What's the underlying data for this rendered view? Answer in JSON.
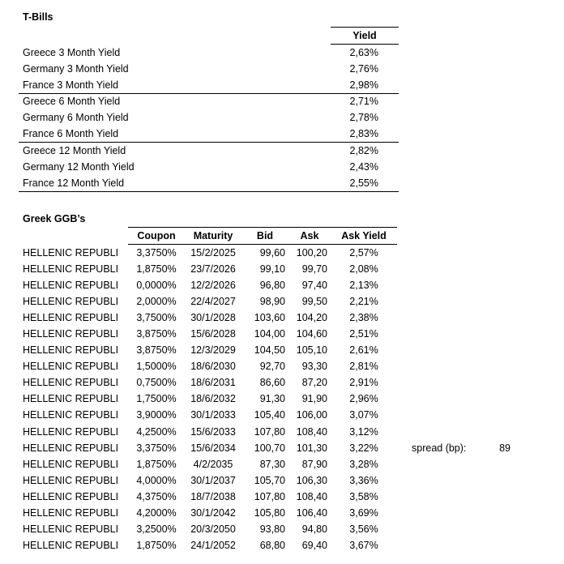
{
  "tbills": {
    "title": "T-Bills",
    "yield_header": "Yield",
    "rows": [
      {
        "label": "Greece 3 Month Yield",
        "value": "2,63%"
      },
      {
        "label": "Germany 3 Month Yield",
        "value": "2,76%"
      },
      {
        "label": "France 3 Month Yield",
        "value": "2,98%"
      },
      {
        "label": "Greece 6 Month Yield",
        "value": "2,71%"
      },
      {
        "label": "Germany 6 Month Yield",
        "value": "2,78%"
      },
      {
        "label": "France 6 Month Yield",
        "value": "2,83%"
      },
      {
        "label": "Greece 12 Month Yield",
        "value": "2,82%"
      },
      {
        "label": "Germany 12 Month Yield",
        "value": "2,43%"
      },
      {
        "label": "France 12 Month Yield",
        "value": "2,55%"
      }
    ]
  },
  "ggb": {
    "title": "Greek GGB’s",
    "columns": {
      "coupon": "Coupon",
      "maturity": "Maturity",
      "bid": "Bid",
      "ask": "Ask",
      "ask_yield": "Ask Yield"
    },
    "rows": [
      {
        "name": "HELLENIC REPUBLI",
        "coupon": "3,3750%",
        "maturity": "15/2/2025",
        "bid": "99,60",
        "ask": "100,20",
        "ask_yield": "2,57%"
      },
      {
        "name": "HELLENIC REPUBLI",
        "coupon": "1,8750%",
        "maturity": "23/7/2026",
        "bid": "99,10",
        "ask": "99,70",
        "ask_yield": "2,08%"
      },
      {
        "name": "HELLENIC REPUBLI",
        "coupon": "0,0000%",
        "maturity": "12/2/2026",
        "bid": "96,80",
        "ask": "97,40",
        "ask_yield": "2,13%"
      },
      {
        "name": "HELLENIC REPUBLI",
        "coupon": "2,0000%",
        "maturity": "22/4/2027",
        "bid": "98,90",
        "ask": "99,50",
        "ask_yield": "2,21%"
      },
      {
        "name": "HELLENIC REPUBLI",
        "coupon": "3,7500%",
        "maturity": "30/1/2028",
        "bid": "103,60",
        "ask": "104,20",
        "ask_yield": "2,38%"
      },
      {
        "name": "HELLENIC REPUBLI",
        "coupon": "3,8750%",
        "maturity": "15/6/2028",
        "bid": "104,00",
        "ask": "104,60",
        "ask_yield": "2,51%"
      },
      {
        "name": "HELLENIC REPUBLI",
        "coupon": "3,8750%",
        "maturity": "12/3/2029",
        "bid": "104,50",
        "ask": "105,10",
        "ask_yield": "2,61%"
      },
      {
        "name": "HELLENIC REPUBLI",
        "coupon": "1,5000%",
        "maturity": "18/6/2030",
        "bid": "92,70",
        "ask": "93,30",
        "ask_yield": "2,81%"
      },
      {
        "name": "HELLENIC REPUBLI",
        "coupon": "0,7500%",
        "maturity": "18/6/2031",
        "bid": "86,60",
        "ask": "87,20",
        "ask_yield": "2,91%"
      },
      {
        "name": "HELLENIC REPUBLI",
        "coupon": "1,7500%",
        "maturity": "18/6/2032",
        "bid": "91,30",
        "ask": "91,90",
        "ask_yield": "2,96%"
      },
      {
        "name": "HELLENIC REPUBLI",
        "coupon": "3,9000%",
        "maturity": "30/1/2033",
        "bid": "105,40",
        "ask": "106,00",
        "ask_yield": "3,07%"
      },
      {
        "name": "HELLENIC REPUBLI",
        "coupon": "4,2500%",
        "maturity": "15/6/2033",
        "bid": "107,80",
        "ask": "108,40",
        "ask_yield": "3,12%"
      },
      {
        "name": "HELLENIC REPUBLI",
        "coupon": "3,3750%",
        "maturity": "15/6/2034",
        "bid": "100,70",
        "ask": "101,30",
        "ask_yield": "3,22%"
      },
      {
        "name": "HELLENIC REPUBLI",
        "coupon": "1,8750%",
        "maturity": "4/2/2035",
        "bid": "87,30",
        "ask": "87,90",
        "ask_yield": "3,28%"
      },
      {
        "name": "HELLENIC REPUBLI",
        "coupon": "4,0000%",
        "maturity": "30/1/2037",
        "bid": "105,70",
        "ask": "106,30",
        "ask_yield": "3,36%"
      },
      {
        "name": "HELLENIC REPUBLI",
        "coupon": "4,3750%",
        "maturity": "18/7/2038",
        "bid": "107,80",
        "ask": "108,40",
        "ask_yield": "3,58%"
      },
      {
        "name": "HELLENIC REPUBLI",
        "coupon": "4,2000%",
        "maturity": "30/1/2042",
        "bid": "105,80",
        "ask": "106,40",
        "ask_yield": "3,69%"
      },
      {
        "name": "HELLENIC REPUBLI",
        "coupon": "3,2500%",
        "maturity": "20/3/2050",
        "bid": "93,80",
        "ask": "94,80",
        "ask_yield": "3,56%"
      },
      {
        "name": "HELLENIC REPUBLI",
        "coupon": "1,8750%",
        "maturity": "24/1/2052",
        "bid": "68,80",
        "ask": "69,40",
        "ask_yield": "3,67%"
      }
    ]
  },
  "spread": {
    "label": "spread (bp):",
    "value": "89"
  },
  "colors": {
    "text": "#000000",
    "background": "#ffffff",
    "rule": "#000000"
  }
}
